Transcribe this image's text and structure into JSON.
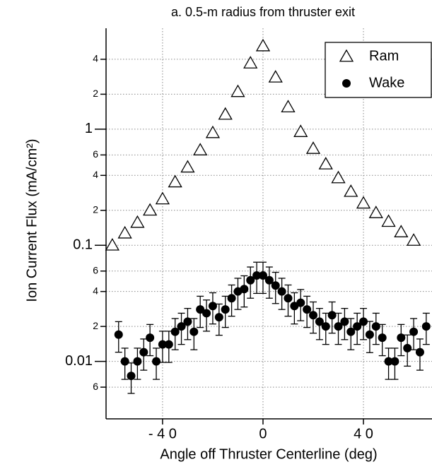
{
  "chart_data": {
    "type": "scatter",
    "title": "a. 0.5-m radius from thruster exit",
    "x_label": "Angle off Thruster Centerline (deg)",
    "y_label": "Ion Current Flux (mA/cm²)",
    "log_y": true,
    "grid": true,
    "legend": "upper right",
    "xlim": [
      -62.5,
      67.3
    ],
    "ylim": [
      0.0032,
      7.4
    ],
    "xticks": [
      {
        "value": -40,
        "label": "- 4 0"
      },
      0,
      {
        "value": 40,
        "label": "4 0"
      }
    ],
    "yticks": [
      {
        "value": 0.006,
        "label": "6"
      },
      0.01,
      {
        "value": 0.02,
        "label": "2"
      },
      {
        "value": 0.04,
        "label": "4"
      },
      {
        "value": 0.06,
        "label": "6"
      },
      0.1,
      {
        "value": 0.2,
        "label": "2"
      },
      {
        "value": 0.4,
        "label": "4"
      },
      {
        "value": 0.6,
        "label": "6"
      },
      1,
      {
        "value": 2,
        "label": "2"
      },
      {
        "value": 4,
        "label": "4"
      }
    ],
    "series": [
      {
        "name": "Ram",
        "color": "#000000",
        "marker": "triangle-open",
        "x": [
          -60,
          -55,
          -50,
          -45,
          -40,
          -35,
          -30,
          -25,
          -20,
          -15,
          -10,
          -5,
          0,
          5,
          10,
          15,
          20,
          25,
          30,
          35,
          40,
          45,
          50,
          55,
          60
        ],
        "values": [
          0.1,
          0.127,
          0.157,
          0.2,
          0.25,
          0.35,
          0.47,
          0.66,
          0.93,
          1.34,
          2.1,
          3.7,
          5.2,
          2.8,
          1.55,
          0.95,
          0.68,
          0.5,
          0.38,
          0.29,
          0.23,
          0.19,
          0.16,
          0.13,
          0.11
        ]
      },
      {
        "name": "Wake",
        "color": "#000000",
        "marker": "circle-filled",
        "x": [
          -57.5,
          -55,
          -52.5,
          -50,
          -47.5,
          -45,
          -42.5,
          -40,
          -37.5,
          -35,
          -32.5,
          -30,
          -27.5,
          -25,
          -22.5,
          -20,
          -17.5,
          -15,
          -12.5,
          -10,
          -7.5,
          -5,
          -2.5,
          0,
          2.5,
          5,
          7.5,
          10,
          12.5,
          15,
          17.5,
          20,
          22.5,
          25,
          27.5,
          30,
          32.5,
          35,
          37.5,
          40,
          42.5,
          45,
          47.5,
          50,
          52.5,
          55,
          57.5,
          60,
          62.5,
          65
        ],
        "values": [
          0.017,
          0.01,
          0.0075,
          0.01,
          0.012,
          0.016,
          0.01,
          0.014,
          0.014,
          0.018,
          0.02,
          0.022,
          0.018,
          0.028,
          0.026,
          0.03,
          0.024,
          0.028,
          0.035,
          0.04,
          0.042,
          0.05,
          0.055,
          0.055,
          0.05,
          0.045,
          0.04,
          0.035,
          0.03,
          0.032,
          0.028,
          0.025,
          0.022,
          0.02,
          0.025,
          0.02,
          0.022,
          0.018,
          0.02,
          0.022,
          0.017,
          0.02,
          0.016,
          0.01,
          0.01,
          0.016,
          0.013,
          0.018,
          0.012,
          0.02
        ],
        "errors": [
          0.005,
          0.003,
          0.0022,
          0.003,
          0.0036,
          0.0048,
          0.003,
          0.0042,
          0.0042,
          0.0054,
          0.006,
          0.0066,
          0.0054,
          0.0084,
          0.0078,
          0.009,
          0.0072,
          0.0084,
          0.0105,
          0.012,
          0.0126,
          0.015,
          0.0165,
          0.0165,
          0.015,
          0.0135,
          0.012,
          0.0105,
          0.009,
          0.0096,
          0.0084,
          0.0075,
          0.0066,
          0.006,
          0.0075,
          0.006,
          0.0066,
          0.0054,
          0.006,
          0.0066,
          0.0051,
          0.006,
          0.0048,
          0.003,
          0.003,
          0.0048,
          0.0039,
          0.0054,
          0.0036,
          0.006
        ]
      }
    ]
  }
}
